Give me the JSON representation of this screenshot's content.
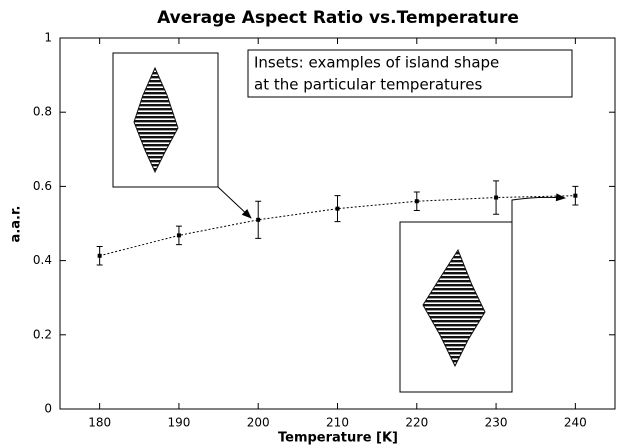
{
  "chart_data": {
    "type": "line",
    "title": "Average Aspect Ratio vs.Temperature",
    "xlabel": "Temperature [K]",
    "ylabel": "a.a.r.",
    "annotation": [
      "Insets: examples of island shape",
      "at the particular temperatures"
    ],
    "x": [
      180,
      190,
      200,
      210,
      220,
      230,
      240
    ],
    "series": [
      {
        "values": [
          0.413,
          0.468,
          0.51,
          0.54,
          0.56,
          0.57,
          0.575
        ],
        "errors": [
          0.025,
          0.025,
          0.05,
          0.035,
          0.025,
          0.045,
          0.025
        ],
        "color": "#000000"
      }
    ],
    "xlim": [
      175,
      245
    ],
    "xticks": [
      180,
      190,
      200,
      210,
      220,
      230,
      240
    ],
    "ylim": [
      0,
      1
    ],
    "yticks": [
      0,
      0.2,
      0.4,
      0.6,
      0.8,
      1
    ]
  }
}
